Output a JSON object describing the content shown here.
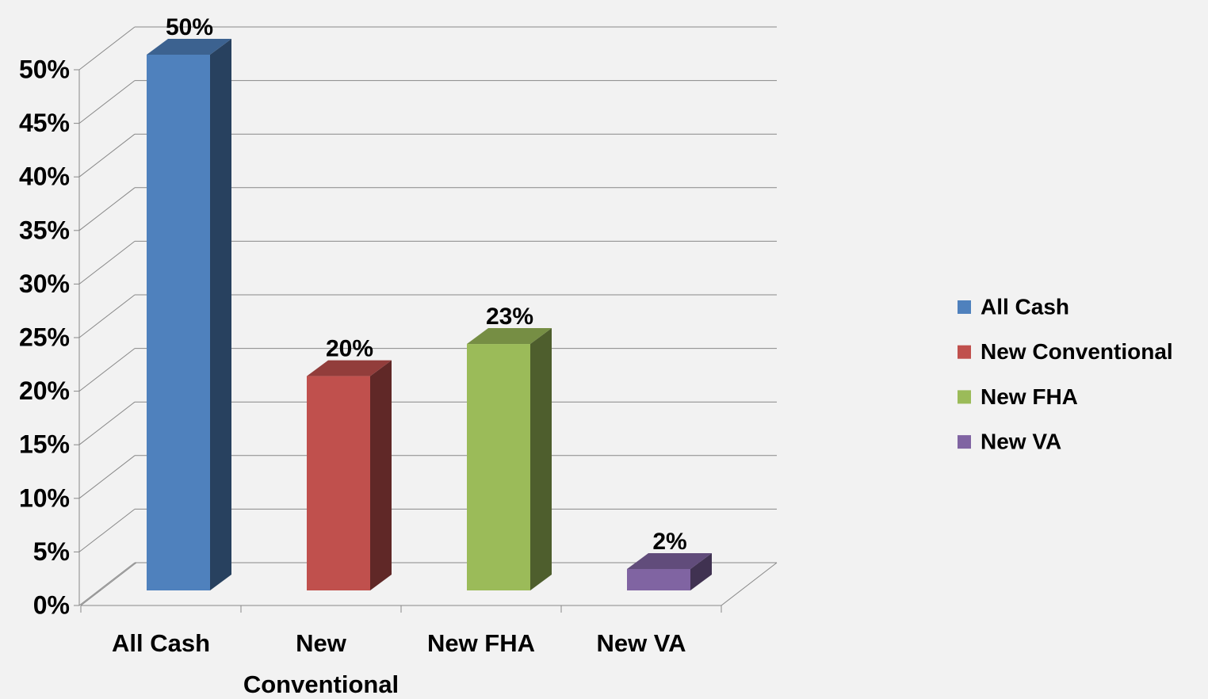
{
  "chart_data": {
    "type": "bar3d",
    "categories": [
      "All Cash",
      "New Conventional",
      "New FHA",
      "New VA"
    ],
    "values": [
      50,
      20,
      23,
      2
    ],
    "value_labels": [
      "50%",
      "20%",
      "23%",
      "2%"
    ],
    "colors": [
      "#4f81bd",
      "#c0504d",
      "#9bbb59",
      "#8064a2"
    ],
    "ylim": [
      0,
      50
    ],
    "yticks": [
      {
        "value": 0,
        "label": "0%"
      },
      {
        "value": 5,
        "label": "5%"
      },
      {
        "value": 10,
        "label": "10%"
      },
      {
        "value": 15,
        "label": "15%"
      },
      {
        "value": 20,
        "label": "20%"
      },
      {
        "value": 25,
        "label": "25%"
      },
      {
        "value": 30,
        "label": "30%"
      },
      {
        "value": 35,
        "label": "35%"
      },
      {
        "value": 40,
        "label": "40%"
      },
      {
        "value": 45,
        "label": "45%"
      },
      {
        "value": 50,
        "label": "50%"
      }
    ],
    "grid": true,
    "legend": "right"
  }
}
